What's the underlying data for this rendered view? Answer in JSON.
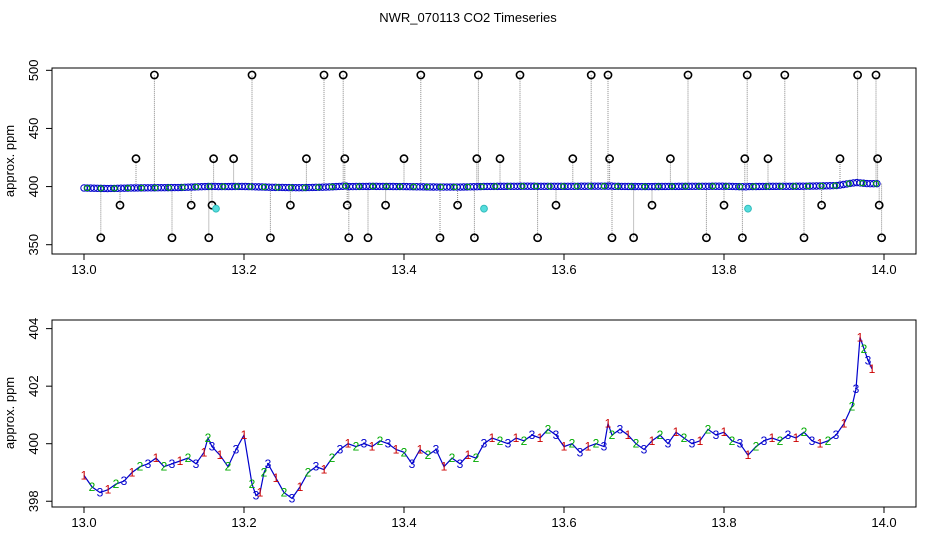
{
  "title": "NWR_070113  CO2 Timeseries",
  "chart_data": [
    {
      "type": "scatter",
      "ylabel": "approx. ppm",
      "xlim": [
        12.96,
        14.04
      ],
      "ylim": [
        342,
        502
      ],
      "xticks": [
        13.0,
        13.2,
        13.4,
        13.6,
        13.8,
        14.0
      ],
      "xtick_labels": [
        "13.0",
        "13.2",
        "13.4",
        "13.6",
        "13.8",
        "14.0"
      ],
      "yticks": [
        350,
        400,
        450,
        500
      ],
      "ytick_labels": [
        "350",
        "400",
        "450",
        "500"
      ],
      "baseline": {
        "x": [
          13.0,
          13.03,
          13.06,
          13.09,
          13.12,
          13.15,
          13.163,
          13.165,
          13.2,
          13.24,
          13.27,
          13.3,
          13.33,
          13.332,
          13.36,
          13.4,
          13.44,
          13.47,
          13.497,
          13.5,
          13.55,
          13.6,
          13.66,
          13.662,
          13.7,
          13.75,
          13.8,
          13.828,
          13.83,
          13.86,
          13.9,
          13.94,
          13.965,
          13.98,
          13.99
        ],
        "y": [
          398.8,
          398.3,
          398.8,
          399.0,
          399.2,
          400.0,
          400.2,
          400.0,
          400.1,
          399.3,
          399.0,
          399.5,
          400.5,
          400.0,
          400.2,
          400.0,
          399.6,
          399.6,
          400.0,
          400.1,
          400.3,
          400.2,
          400.4,
          400.2,
          400.0,
          400.2,
          400.3,
          399.8,
          400.0,
          400.2,
          400.3,
          400.8,
          403.5,
          402.5,
          402.5
        ]
      },
      "calibration_x": [
        13.021,
        13.045,
        13.065,
        13.088,
        13.11,
        13.134,
        13.156,
        13.16,
        13.162,
        13.187,
        13.21,
        13.233,
        13.258,
        13.278,
        13.3,
        13.324,
        13.326,
        13.329,
        13.331,
        13.355,
        13.377,
        13.4,
        13.421,
        13.445,
        13.467,
        13.488,
        13.491,
        13.493,
        13.52,
        13.545,
        13.567,
        13.59,
        13.611,
        13.634,
        13.655,
        13.657,
        13.66,
        13.687,
        13.71,
        13.733,
        13.755,
        13.778,
        13.8,
        13.823,
        13.826,
        13.829,
        13.855,
        13.876,
        13.9,
        13.922,
        13.945,
        13.967,
        13.99,
        13.992,
        13.994,
        13.997
      ],
      "calibration_y": [
        356,
        384,
        424,
        496,
        356,
        384,
        356,
        384,
        424,
        424,
        496,
        356,
        384,
        424,
        496,
        496,
        424,
        384,
        356,
        356,
        384,
        424,
        496,
        356,
        384,
        356,
        424,
        496,
        424,
        496,
        356,
        384,
        424,
        496,
        496,
        424,
        356,
        356,
        384,
        424,
        496,
        356,
        384,
        356,
        424,
        496,
        424,
        496,
        356,
        384,
        424,
        496,
        496,
        424,
        384,
        356
      ],
      "flagged_x": [
        13.165,
        13.5,
        13.83
      ],
      "flagged_y": [
        381,
        381,
        381
      ]
    },
    {
      "type": "line",
      "ylabel": "approx. ppm",
      "xlim": [
        12.96,
        14.04
      ],
      "ylim": [
        397.8,
        404.3
      ],
      "xticks": [
        13.0,
        13.2,
        13.4,
        13.6,
        13.8,
        14.0
      ],
      "xtick_labels": [
        "13.0",
        "13.2",
        "13.4",
        "13.6",
        "13.8",
        "14.0"
      ],
      "yticks": [
        398,
        400,
        402,
        404
      ],
      "ytick_labels": [
        "398",
        "400",
        "402",
        "404"
      ],
      "series_markers": [
        "1",
        "2",
        "3"
      ],
      "series_colors": [
        "#cc0000",
        "#00aa00",
        "#0000cc"
      ],
      "x": [
        13.0,
        13.01,
        13.02,
        13.03,
        13.04,
        13.05,
        13.06,
        13.07,
        13.08,
        13.09,
        13.1,
        13.11,
        13.12,
        13.13,
        13.14,
        13.15,
        13.155,
        13.16,
        13.17,
        13.18,
        13.19,
        13.2,
        13.21,
        13.215,
        13.22,
        13.225,
        13.23,
        13.24,
        13.25,
        13.26,
        13.27,
        13.28,
        13.29,
        13.3,
        13.31,
        13.32,
        13.33,
        13.34,
        13.35,
        13.36,
        13.37,
        13.38,
        13.39,
        13.4,
        13.41,
        13.42,
        13.43,
        13.44,
        13.45,
        13.46,
        13.47,
        13.48,
        13.49,
        13.5,
        13.51,
        13.52,
        13.53,
        13.54,
        13.55,
        13.56,
        13.57,
        13.58,
        13.59,
        13.6,
        13.61,
        13.62,
        13.63,
        13.64,
        13.65,
        13.655,
        13.66,
        13.67,
        13.68,
        13.69,
        13.7,
        13.71,
        13.72,
        13.73,
        13.74,
        13.75,
        13.76,
        13.77,
        13.78,
        13.79,
        13.8,
        13.81,
        13.82,
        13.83,
        13.84,
        13.85,
        13.86,
        13.87,
        13.88,
        13.89,
        13.9,
        13.91,
        13.92,
        13.93,
        13.94,
        13.95,
        13.96,
        13.965,
        13.97,
        13.975,
        13.98,
        13.985
      ],
      "y": [
        398.9,
        398.5,
        398.3,
        398.4,
        398.6,
        398.7,
        399.0,
        399.2,
        399.3,
        399.5,
        399.2,
        399.3,
        399.4,
        399.5,
        399.3,
        399.7,
        400.2,
        399.9,
        399.6,
        399.2,
        399.8,
        400.3,
        398.6,
        398.2,
        398.3,
        399.0,
        399.3,
        398.8,
        398.3,
        398.1,
        398.5,
        399.0,
        399.2,
        399.1,
        399.5,
        399.8,
        400.0,
        399.9,
        400.0,
        399.9,
        400.1,
        400.0,
        399.8,
        399.7,
        399.3,
        399.8,
        399.6,
        399.8,
        399.2,
        399.5,
        399.3,
        399.6,
        399.5,
        400.0,
        400.2,
        400.1,
        400.0,
        400.2,
        400.1,
        400.3,
        400.2,
        400.5,
        400.3,
        399.9,
        400.0,
        399.7,
        399.9,
        400.0,
        399.9,
        400.7,
        400.3,
        400.5,
        400.3,
        400.0,
        399.8,
        400.1,
        400.3,
        400.0,
        400.4,
        400.2,
        400.0,
        400.1,
        400.5,
        400.3,
        400.4,
        400.1,
        400.0,
        399.6,
        399.9,
        400.1,
        400.2,
        400.1,
        400.3,
        400.2,
        400.4,
        400.1,
        400.0,
        400.1,
        400.3,
        400.7,
        401.3,
        401.9,
        403.7,
        403.3,
        402.9,
        402.6
      ]
    }
  ]
}
